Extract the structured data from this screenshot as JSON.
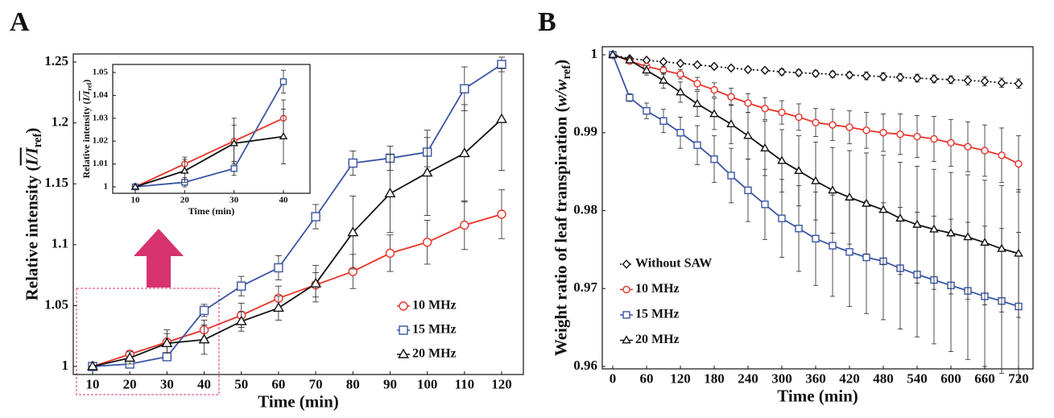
{
  "chart_data": [
    {
      "type": "line",
      "panel": "A",
      "xlabel": "Time (min)",
      "ylabel_parts": [
        "Relative intensity (",
        "I/I",
        "ref",
        ")"
      ],
      "x": [
        10,
        20,
        30,
        40,
        50,
        60,
        70,
        80,
        90,
        100,
        110,
        120
      ],
      "xlim": [
        10,
        120
      ],
      "xticks": [
        10,
        20,
        30,
        40,
        50,
        60,
        70,
        80,
        90,
        100,
        110,
        120
      ],
      "ylim": [
        1,
        1.25
      ],
      "yticks": [
        1,
        1.05,
        1.1,
        1.15,
        1.2,
        1.25
      ],
      "legend": "lower right",
      "series": [
        {
          "name": "10 MHz",
          "color": "#e8332a",
          "marker": "circle",
          "values": [
            1.0,
            1.01,
            1.02,
            1.03,
            1.042,
            1.056,
            1.067,
            1.078,
            1.093,
            1.102,
            1.116,
            1.125
          ],
          "errors": [
            0,
            0.003,
            0.01,
            0.008,
            0.01,
            0.01,
            0.01,
            0.014,
            0.015,
            0.018,
            0.02,
            0.02
          ]
        },
        {
          "name": "15 MHz",
          "color": "#3a55a4",
          "marker": "square",
          "values": [
            1.0,
            1.002,
            1.008,
            1.046,
            1.066,
            1.081,
            1.123,
            1.167,
            1.171,
            1.176,
            1.228,
            1.248
          ],
          "errors": [
            0,
            0.002,
            0.003,
            0.005,
            0.008,
            0.01,
            0.01,
            0.01,
            0.01,
            0.012,
            0.018,
            0.006
          ]
        },
        {
          "name": "20 MHz",
          "color": "#111111",
          "marker": "triangle",
          "values": [
            1.0,
            1.007,
            1.019,
            1.022,
            1.037,
            1.048,
            1.068,
            1.11,
            1.142,
            1.159,
            1.175,
            1.203
          ],
          "errors": [
            0,
            0.005,
            0.008,
            0.012,
            0.008,
            0.01,
            0.015,
            0.03,
            0.032,
            0.035,
            0.04,
            0.042
          ]
        }
      ]
    },
    {
      "type": "line",
      "xlabel": "Time (min)",
      "ylabel_parts": [
        "Relative intensity (",
        "I/I",
        "ref",
        ")"
      ],
      "x": [
        10,
        20,
        30,
        40
      ],
      "xlim": [
        10,
        40
      ],
      "xticks": [
        10,
        20,
        30,
        40
      ],
      "ylim": [
        1,
        1.05
      ],
      "yticks": [
        1,
        1.01,
        1.02,
        1.03,
        1.04,
        1.05
      ],
      "series": [
        {
          "color": "#e8332a",
          "marker": "circle",
          "values": [
            1.0,
            1.01,
            1.02,
            1.03
          ],
          "errors": [
            0,
            0.003,
            0.01,
            0.008
          ]
        },
        {
          "color": "#3a55a4",
          "marker": "square",
          "values": [
            1.0,
            1.002,
            1.008,
            1.046
          ],
          "errors": [
            0,
            0.002,
            0.003,
            0.005
          ]
        },
        {
          "color": "#111111",
          "marker": "triangle",
          "values": [
            1.0,
            1.007,
            1.019,
            1.022
          ],
          "errors": [
            0,
            0.005,
            0.008,
            0.012
          ]
        }
      ]
    },
    {
      "type": "line",
      "panel": "B",
      "xlabel": "Time (min)",
      "ylabel_parts": [
        "Weight ratio of leaf transpiration (",
        "w/w",
        "ref",
        ")"
      ],
      "x": [
        0,
        30,
        60,
        90,
        120,
        150,
        180,
        210,
        240,
        270,
        300,
        330,
        360,
        390,
        420,
        450,
        480,
        510,
        540,
        570,
        600,
        630,
        660,
        690,
        720
      ],
      "xlim": [
        0,
        720
      ],
      "xticks": [
        0,
        60,
        120,
        180,
        240,
        300,
        360,
        420,
        480,
        540,
        600,
        660,
        720
      ],
      "ylim": [
        0.96,
        1
      ],
      "yticks": [
        0.96,
        0.97,
        0.98,
        0.99,
        1
      ],
      "legend": "lower left",
      "series": [
        {
          "name": "Without SAW",
          "color": "#111111",
          "marker": "diamond",
          "dash": "dotted",
          "values": [
            1,
            0.9995,
            0.9993,
            0.9991,
            0.9989,
            0.9987,
            0.9985,
            0.9983,
            0.9981,
            0.998,
            0.9978,
            0.9977,
            0.9976,
            0.9975,
            0.9974,
            0.9973,
            0.9972,
            0.9971,
            0.997,
            0.9969,
            0.9968,
            0.9967,
            0.9966,
            0.9964,
            0.9963
          ],
          "errors": [
            0,
            0.0001,
            0.0001,
            0.0002,
            0.0002,
            0.0002,
            0.0003,
            0.0003,
            0.0003,
            0.0003,
            0.0004,
            0.0004,
            0.0004,
            0.0004,
            0.0004,
            0.0005,
            0.0005,
            0.0005,
            0.0005,
            0.0005,
            0.0005,
            0.0006,
            0.0006,
            0.0006,
            0.0006
          ]
        },
        {
          "name": "10 MHz",
          "color": "#e8332a",
          "marker": "circle",
          "values": [
            1,
            0.9992,
            0.9985,
            0.998,
            0.9975,
            0.9963,
            0.9955,
            0.9946,
            0.9938,
            0.9931,
            0.9926,
            0.992,
            0.9913,
            0.991,
            0.9907,
            0.9903,
            0.99,
            0.9898,
            0.9895,
            0.9892,
            0.9887,
            0.9882,
            0.9877,
            0.9871,
            0.986
          ],
          "errors": [
            0,
            0.0002,
            0.0003,
            0.0005,
            0.0006,
            0.0008,
            0.0009,
            0.0011,
            0.0012,
            0.0014,
            0.0015,
            0.0017,
            0.0018,
            0.002,
            0.0021,
            0.0023,
            0.0024,
            0.0026,
            0.0027,
            0.0029,
            0.003,
            0.0032,
            0.0033,
            0.0035,
            0.0036
          ]
        },
        {
          "name": "15 MHz",
          "color": "#3a55a4",
          "marker": "square",
          "values": [
            1,
            0.9945,
            0.9928,
            0.9915,
            0.99,
            0.9884,
            0.9866,
            0.9845,
            0.9826,
            0.9808,
            0.979,
            0.9777,
            0.9764,
            0.9755,
            0.9747,
            0.974,
            0.9735,
            0.9726,
            0.9718,
            0.9711,
            0.9704,
            0.9697,
            0.969,
            0.9684,
            0.9677
          ],
          "errors": [
            0,
            0.0005,
            0.001,
            0.0015,
            0.002,
            0.0025,
            0.003,
            0.0035,
            0.004,
            0.0045,
            0.005,
            0.0055,
            0.006,
            0.0065,
            0.007,
            0.0072,
            0.0075,
            0.0078,
            0.008,
            0.0082,
            0.0085,
            0.0088,
            0.009,
            0.0093,
            0.0095
          ]
        },
        {
          "name": "20 MHz",
          "color": "#111111",
          "marker": "triangle",
          "values": [
            1,
            0.9993,
            0.998,
            0.9967,
            0.9952,
            0.9937,
            0.9924,
            0.9911,
            0.9896,
            0.988,
            0.9864,
            0.9851,
            0.9838,
            0.9826,
            0.9817,
            0.9809,
            0.9801,
            0.979,
            0.9782,
            0.9776,
            0.9771,
            0.9766,
            0.9759,
            0.9751,
            0.9745
          ],
          "errors": [
            0,
            0.0003,
            0.0006,
            0.001,
            0.0013,
            0.0016,
            0.002,
            0.0025,
            0.003,
            0.0035,
            0.004,
            0.0045,
            0.005,
            0.0055,
            0.006,
            0.0065,
            0.007,
            0.0072,
            0.0075,
            0.0077,
            0.0078,
            0.008,
            0.008,
            0.0081,
            0.0082
          ]
        }
      ]
    }
  ]
}
